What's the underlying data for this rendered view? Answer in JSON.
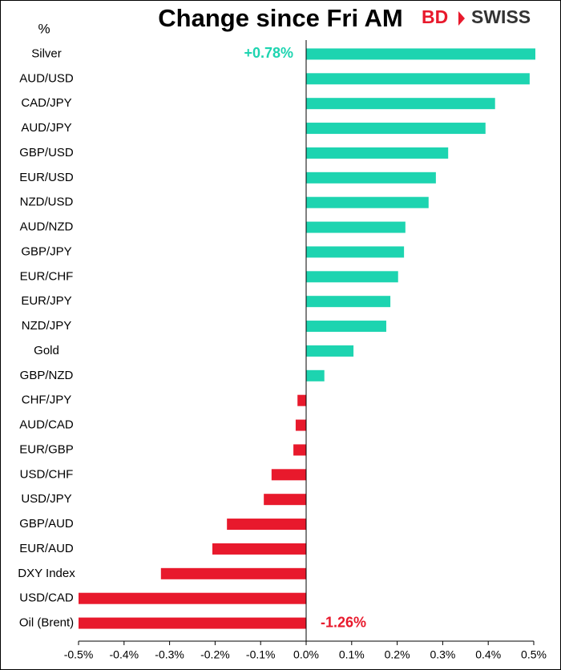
{
  "chart_data": {
    "type": "barh",
    "title": "Change since Fri AM",
    "y_label": "%",
    "logo": {
      "left": "BD",
      "right": "SWISS"
    },
    "categories": [
      "Silver",
      "AUD/USD",
      "CAD/JPY",
      "AUD/JPY",
      "GBP/USD",
      "EUR/USD",
      "NZD/USD",
      "AUD/NZD",
      "GBP/JPY",
      "EUR/CHF",
      "EUR/JPY",
      "NZD/JPY",
      "Gold",
      "GBP/NZD",
      "CHF/JPY",
      "AUD/CAD",
      "EUR/GBP",
      "USD/CHF",
      "USD/JPY",
      "GBP/AUD",
      "EUR/AUD",
      "DXY Index",
      "USD/CAD",
      "Oil (Brent)"
    ],
    "values": [
      0.78,
      0.491,
      0.415,
      0.394,
      0.312,
      0.285,
      0.269,
      0.218,
      0.215,
      0.202,
      0.185,
      0.176,
      0.104,
      0.04,
      -0.019,
      -0.023,
      -0.028,
      -0.076,
      -0.093,
      -0.174,
      -0.206,
      -0.319,
      -0.5,
      -1.26
    ],
    "value_labels": [
      "+0.78%",
      null,
      null,
      null,
      null,
      null,
      null,
      null,
      null,
      null,
      null,
      null,
      null,
      null,
      null,
      null,
      null,
      null,
      null,
      null,
      null,
      null,
      null,
      "-1.26%"
    ],
    "positive_color": "#1dd4b0",
    "negative_color": "#e8192c",
    "xlim": [
      -0.5,
      0.5
    ],
    "xticks": [
      {
        "value": -0.5,
        "label": "-0.5%"
      },
      {
        "value": -0.4,
        "label": "-0.4%"
      },
      {
        "value": -0.3,
        "label": "-0.3%"
      },
      {
        "value": -0.2,
        "label": "-0.2%"
      },
      {
        "value": -0.1,
        "label": "-0.1%"
      },
      {
        "value": 0,
        "label": "0.0%"
      },
      {
        "value": 0.1,
        "label": "0.1%"
      },
      {
        "value": 0.2,
        "label": "0.2%"
      },
      {
        "value": 0.3,
        "label": "0.3%"
      },
      {
        "value": 0.4,
        "label": "0.4%"
      },
      {
        "value": 0.5,
        "label": "0.5%"
      }
    ],
    "grid": false
  }
}
